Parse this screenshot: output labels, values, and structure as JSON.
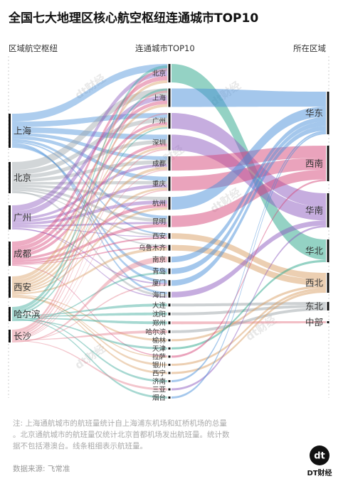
{
  "chart_data": {
    "type": "sankey",
    "title": "全国七大地理区核心航空枢纽连通城市TOP10",
    "column_headers": [
      "区域航空枢纽",
      "连通城市TOP10",
      "所在区域"
    ],
    "hubs": [
      "上海",
      "北京",
      "广州",
      "成都",
      "西安",
      "哈尔滨",
      "长沙"
    ],
    "cities": [
      "北京",
      "上海",
      "广州",
      "深圳",
      "成都",
      "重庆",
      "杭州",
      "昆明",
      "西安",
      "乌鲁木齐",
      "南京",
      "青岛",
      "厦门",
      "海口",
      "大连",
      "沈阳",
      "郑州",
      "哈尔滨",
      "榆林",
      "天津",
      "拉萨",
      "银川",
      "西宁",
      "济南",
      "三亚",
      "烟台"
    ],
    "regions": [
      "华东",
      "西南",
      "华南",
      "华北",
      "西北",
      "东北",
      "中部"
    ],
    "colors": {
      "上海": "#4a90d9",
      "北京": "#9ca3a8",
      "广州": "#8e5bbf",
      "成都": "#d6477a",
      "西安": "#d9a066",
      "哈尔滨": "#3aa898",
      "长沙": "#e57f8e",
      "华东": "#4a90d9",
      "西南": "#d6477a",
      "华南": "#8e5bbf",
      "华北": "#2aa58a",
      "西北": "#d9a066",
      "东北": "#9ca3a8",
      "中部": "#e57f8e"
    },
    "notes": [
      "注: 上海通航城市的航班量统计自上海浦东机场和虹桥机场的总量",
      "。北京通航城市的航班量仅统计北京首都机场发出航班量。统计数",
      "据不包括港澳台。线条粗细表示航班量。"
    ],
    "source": "数据来源: 飞常准",
    "brand": "DT财经",
    "watermark": "dt财经"
  }
}
